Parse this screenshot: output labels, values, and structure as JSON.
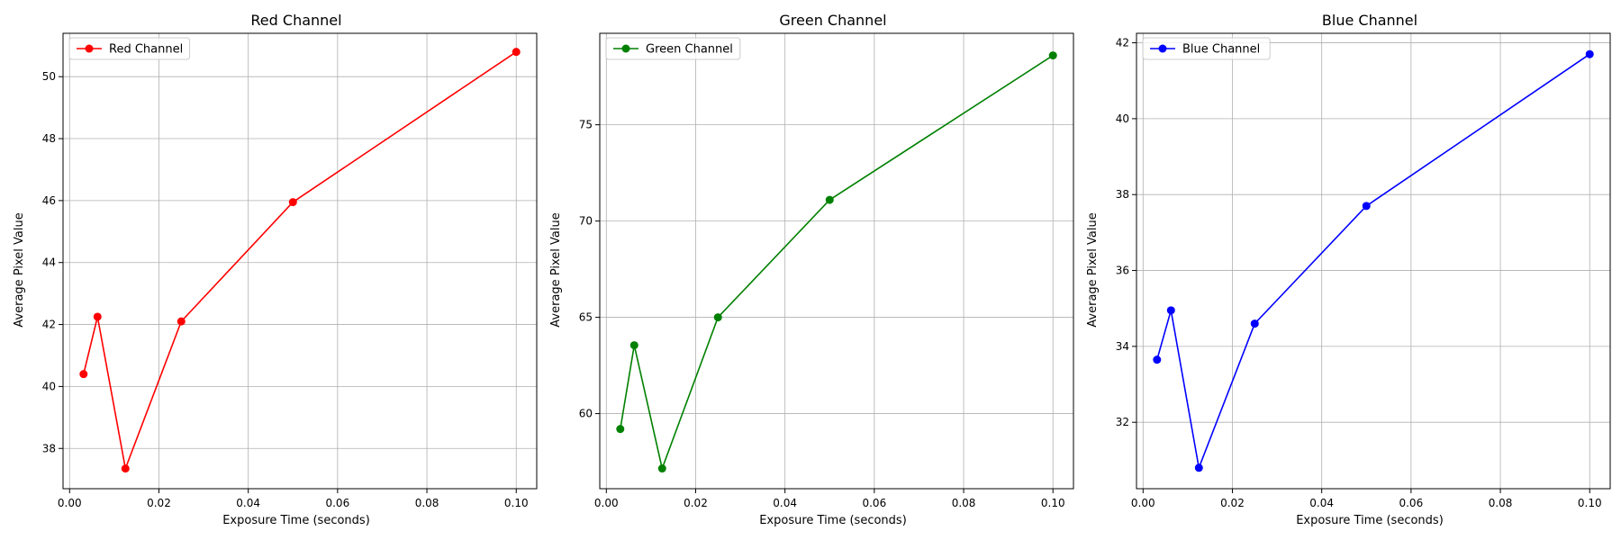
{
  "chart_data": [
    {
      "type": "line",
      "title": "Red Channel",
      "xlabel": "Exposure Time (seconds)",
      "ylabel": "Average Pixel Value",
      "color": "#ff0000",
      "x": [
        0.003125,
        0.00625,
        0.0125,
        0.025,
        0.05,
        0.1
      ],
      "series": [
        {
          "name": "Red Channel",
          "values": [
            40.4,
            42.25,
            37.35,
            42.1,
            45.95,
            50.8
          ]
        }
      ],
      "xlim": [
        -0.00147,
        0.10459
      ],
      "ylim": [
        36.7,
        51.4
      ],
      "xticks": [
        0.0,
        0.02,
        0.04,
        0.06,
        0.08,
        0.1
      ],
      "xtick_labels": [
        "0.00",
        "0.02",
        "0.04",
        "0.06",
        "0.08",
        "0.10"
      ],
      "yticks": [
        38,
        40,
        42,
        44,
        46,
        48,
        50
      ],
      "ytick_labels": [
        "38",
        "40",
        "42",
        "44",
        "46",
        "48",
        "50"
      ],
      "grid": true,
      "legend_position": "top-left"
    },
    {
      "type": "line",
      "title": "Green Channel",
      "xlabel": "Exposure Time (seconds)",
      "ylabel": "Average Pixel Value",
      "color": "#008000",
      "x": [
        0.003125,
        0.00625,
        0.0125,
        0.025,
        0.05,
        0.1
      ],
      "series": [
        {
          "name": "Green Channel",
          "values": [
            59.2,
            63.55,
            57.15,
            65.0,
            71.1,
            78.6
          ]
        }
      ],
      "xlim": [
        -0.00147,
        0.10459
      ],
      "ylim": [
        56.1,
        79.75
      ],
      "xticks": [
        0.0,
        0.02,
        0.04,
        0.06,
        0.08,
        0.1
      ],
      "xtick_labels": [
        "0.00",
        "0.02",
        "0.04",
        "0.06",
        "0.08",
        "0.10"
      ],
      "yticks": [
        60,
        65,
        70,
        75
      ],
      "ytick_labels": [
        "60",
        "65",
        "70",
        "75"
      ],
      "grid": true,
      "legend_position": "top-left"
    },
    {
      "type": "line",
      "title": "Blue Channel",
      "xlabel": "Exposure Time (seconds)",
      "ylabel": "Average Pixel Value",
      "color": "#0000ff",
      "x": [
        0.003125,
        0.00625,
        0.0125,
        0.025,
        0.05,
        0.1
      ],
      "series": [
        {
          "name": "Blue Channel",
          "values": [
            33.65,
            34.95,
            30.8,
            34.6,
            37.7,
            41.7
          ]
        }
      ],
      "xlim": [
        -0.00147,
        0.10459
      ],
      "ylim": [
        30.25,
        42.25
      ],
      "xticks": [
        0.0,
        0.02,
        0.04,
        0.06,
        0.08,
        0.1
      ],
      "xtick_labels": [
        "0.00",
        "0.02",
        "0.04",
        "0.06",
        "0.08",
        "0.10"
      ],
      "yticks": [
        32,
        34,
        36,
        38,
        40,
        42
      ],
      "ytick_labels": [
        "32",
        "34",
        "36",
        "38",
        "40",
        "42"
      ],
      "grid": true,
      "legend_position": "top-left"
    }
  ]
}
